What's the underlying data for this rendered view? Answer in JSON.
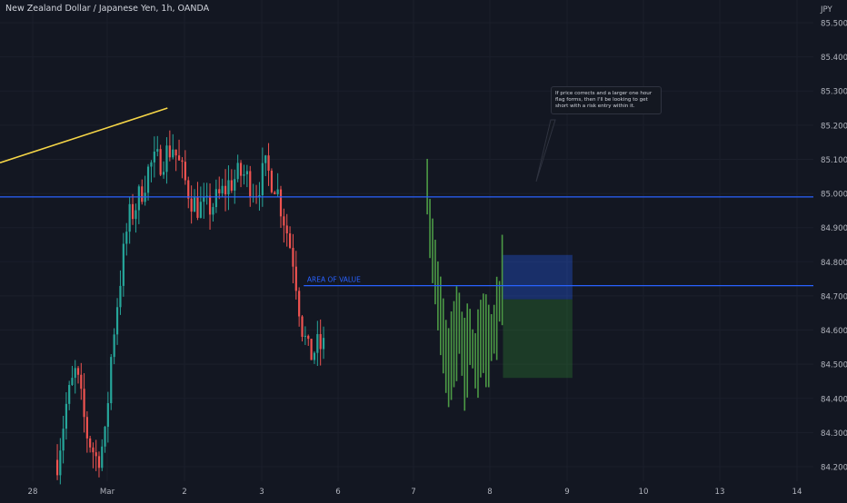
{
  "chart_data": {
    "type": "candlestick",
    "title": "New Zealand Dollar / Japanese Yen, 1h, OANDA",
    "currency_label": "JPY",
    "y_ticks": [
      "85.500",
      "85.400",
      "85.300",
      "85.200",
      "85.100",
      "85.000",
      "84.900",
      "84.800",
      "84.700",
      "84.600",
      "84.500",
      "84.400",
      "84.300",
      "84.200"
    ],
    "ylim": [
      84.16,
      85.54
    ],
    "x_ticks": [
      {
        "label": "28",
        "pos": 0
      },
      {
        "label": "Mar",
        "pos": 1
      },
      {
        "label": "2",
        "pos": 2
      },
      {
        "label": "3",
        "pos": 3
      },
      {
        "label": "6",
        "pos": 4
      },
      {
        "label": "7",
        "pos": 5
      },
      {
        "label": "8",
        "pos": 6
      },
      {
        "label": "9",
        "pos": 7
      },
      {
        "label": "10",
        "pos": 8
      },
      {
        "label": "13",
        "pos": 9
      },
      {
        "label": "14",
        "pos": 10
      }
    ],
    "colors": {
      "up": "#26a69a",
      "down": "#ef5350",
      "projection": "#4c9a45",
      "line": "#2962ff",
      "trend": "#f5d547",
      "background": "#131722"
    },
    "horizontal_lines": [
      {
        "price": 84.99,
        "label": ""
      },
      {
        "price": 84.73,
        "label": "AREA OF VALUE"
      }
    ],
    "trendline": {
      "from_price": 85.09,
      "to_price": 85.25
    },
    "position_box": {
      "entry": 84.69,
      "stop": 84.82,
      "target": 84.46
    },
    "annotation": "If price corrects and a larger one hour flag forms, then I'll be looking to get short with a risk entry within it."
  }
}
